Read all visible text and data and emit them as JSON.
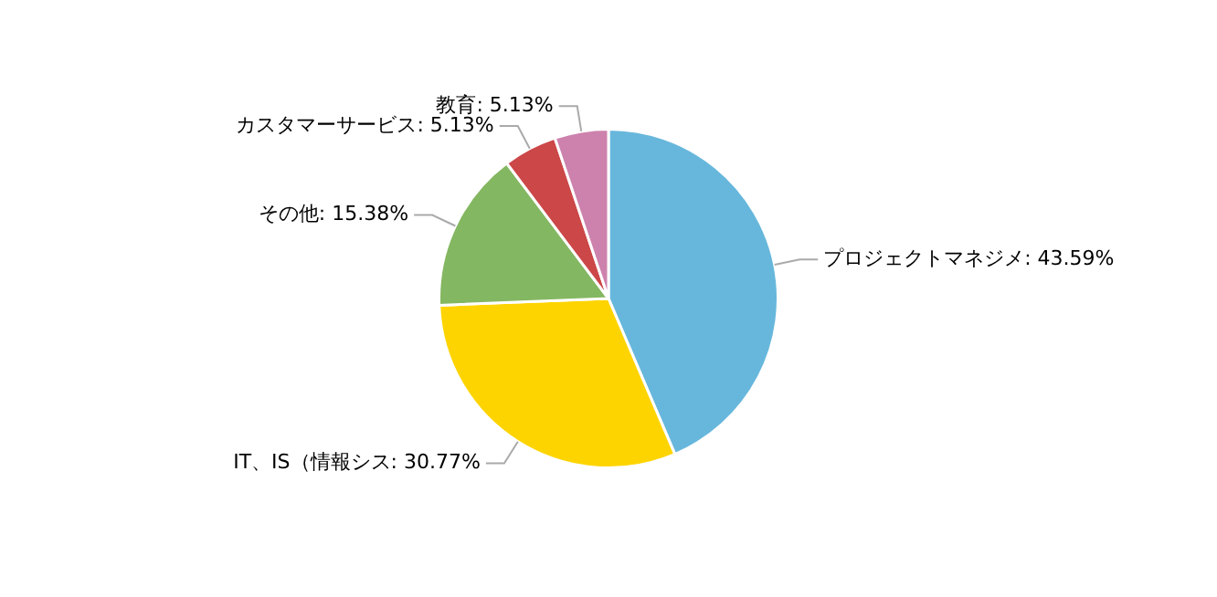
{
  "chart_data": {
    "type": "pie",
    "categories": [
      "プロジェクトマネジメ",
      "IT、IS（情報シス",
      "その他",
      "カスタマーサービス",
      "教育"
    ],
    "values": [
      43.59,
      30.77,
      15.38,
      5.13,
      5.13
    ],
    "value_labels": [
      "43.59%",
      "30.77%",
      "15.38%",
      "5.13%",
      "5.13%"
    ],
    "colors": [
      "#67b7dc",
      "#fdd400",
      "#84b761",
      "#cc4748",
      "#cd82ad"
    ],
    "legend": false
  }
}
